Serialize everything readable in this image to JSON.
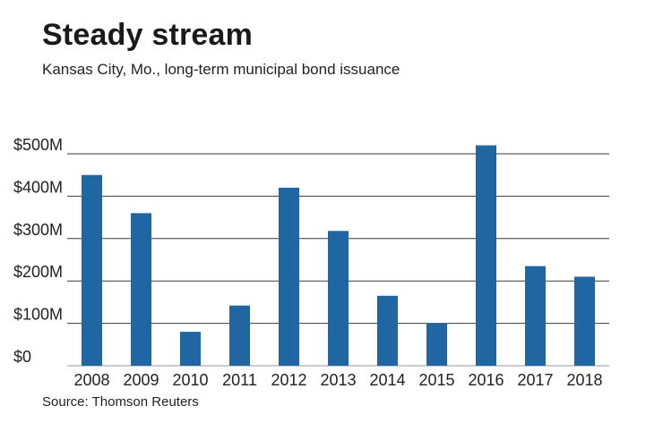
{
  "title": "Steady stream",
  "subtitle": "Kansas City, Mo., long-term municipal bond issuance",
  "source": "Source: Thomson Reuters",
  "colors": {
    "bar": "#1f66a2",
    "grid": "#3a3a3a",
    "baseline": "#9a9a9a"
  },
  "chart_data": {
    "type": "bar",
    "categories": [
      "2008",
      "2009",
      "2010",
      "2011",
      "2012",
      "2013",
      "2014",
      "2015",
      "2016",
      "2017",
      "2018"
    ],
    "values": [
      450,
      360,
      80,
      142,
      420,
      318,
      165,
      100,
      520,
      235,
      210
    ],
    "unit": "$ millions",
    "ylim": [
      0,
      500
    ],
    "yticks": [
      0,
      100,
      200,
      300,
      400,
      500
    ],
    "ytick_labels": [
      "$0",
      "$100M",
      "$200M",
      "$300M",
      "$400M",
      "$500M"
    ],
    "grid": true
  }
}
